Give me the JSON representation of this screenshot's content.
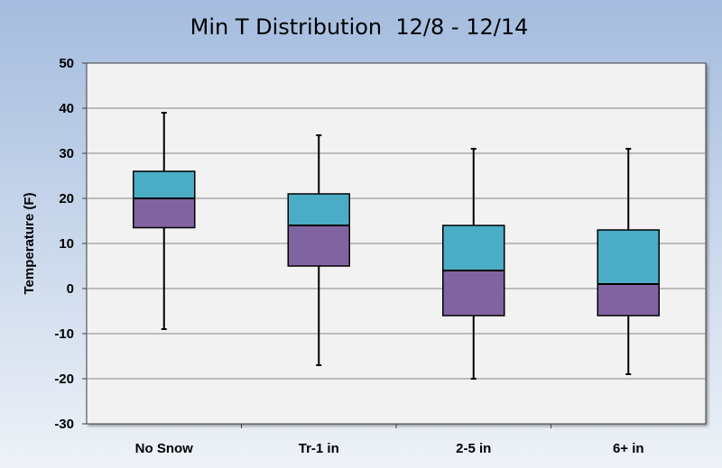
{
  "chart_data": {
    "type": "box",
    "title": "Min T Distribution  12/8 - 12/14",
    "xlabel": "",
    "ylabel": "Temperature (F)",
    "ylim": [
      -30,
      50
    ],
    "yticks": [
      50,
      40,
      30,
      20,
      10,
      0,
      -10,
      -20,
      -30
    ],
    "categories": [
      "No Snow",
      "Tr-1 in",
      "2-5 in",
      "6+ in"
    ],
    "series": [
      {
        "category": "No Snow",
        "min": -9,
        "q1": 13.5,
        "median": 20,
        "q3": 26,
        "max": 39
      },
      {
        "category": "Tr-1 in",
        "min": -17,
        "q1": 5,
        "median": 14,
        "q3": 21,
        "max": 34
      },
      {
        "category": "2-5 in",
        "min": -20,
        "q1": -6,
        "median": 4,
        "q3": 14,
        "max": 31
      },
      {
        "category": "6+ in",
        "min": -19,
        "q1": -6,
        "median": 1,
        "q3": 13,
        "max": 31
      }
    ],
    "colors": {
      "upper_box": "#4BACC6",
      "lower_box": "#8064A2",
      "plot_background": "#F2F2F2",
      "background_top": "#A4BCDE",
      "background_bottom": "#EEF2F8",
      "gridline": "#868686"
    },
    "grid": true,
    "legend": "none"
  }
}
